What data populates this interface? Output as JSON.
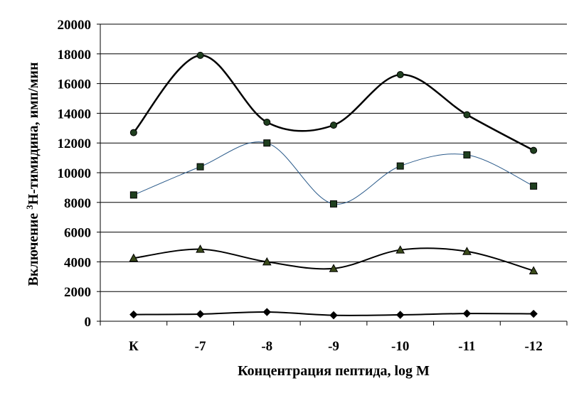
{
  "chart_data": {
    "type": "line",
    "title": "",
    "xlabel": "Концентрация пептида, log M",
    "ylabel": {
      "prefix": "Включение ",
      "superscript": "3",
      "suffix": "Н-тимидина, имп/мин"
    },
    "categories": [
      "К",
      "-7",
      "-8",
      "-9",
      "-10",
      "-11",
      "-12"
    ],
    "ylim": [
      0,
      20000
    ],
    "yticks": [
      "0",
      "2000",
      "4000",
      "6000",
      "8000",
      "10000",
      "12000",
      "14000",
      "16000",
      "18000",
      "20000"
    ],
    "grid": "horizontal",
    "smooth": true,
    "series": [
      {
        "marker": "circle",
        "color": "#000000",
        "marker_color": "#1f3f1f",
        "line_width": 2.5,
        "values": [
          12700,
          17900,
          13400,
          13200,
          16600,
          13900,
          11500
        ]
      },
      {
        "marker": "square",
        "color": "#2a5a8a",
        "marker_color": "#1f3f1f",
        "line_width": 1,
        "values": [
          8500,
          10400,
          12000,
          7900,
          10450,
          11200,
          9100
        ]
      },
      {
        "marker": "triangle",
        "color": "#000000",
        "marker_color": "#3a4a1a",
        "line_width": 2,
        "values": [
          4250,
          4850,
          4000,
          3550,
          4800,
          4700,
          3400
        ]
      },
      {
        "marker": "diamond",
        "color": "#000000",
        "marker_color": "#000000",
        "line_width": 2,
        "values": [
          450,
          480,
          620,
          400,
          430,
          520,
          500
        ]
      }
    ]
  }
}
